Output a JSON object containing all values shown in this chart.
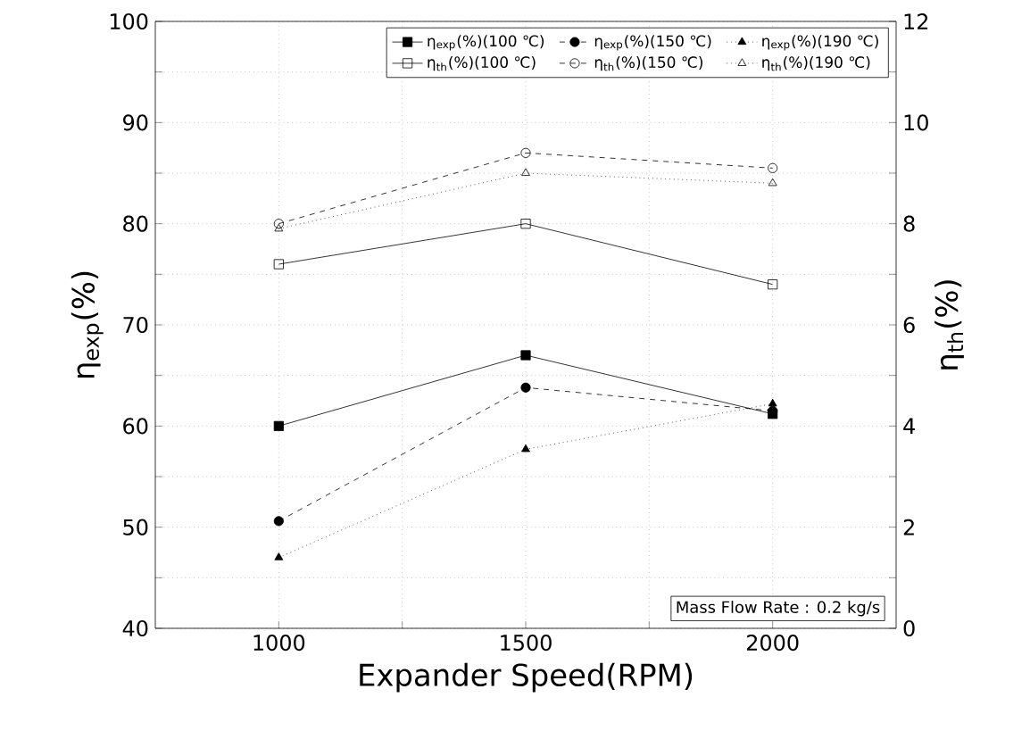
{
  "chart_data": {
    "type": "line",
    "xlabel": "Expander Speed(RPM)",
    "ylabel": "η$_{exp}$(%)",
    "y2label": "η$_{th}$(%)",
    "x": [
      1000,
      1500,
      2000
    ],
    "xlim": [
      750,
      2250
    ],
    "xticks": [
      1000,
      {
        "value": 1250,
        "label": null
      },
      1500,
      {
        "value": 1750,
        "label": null
      },
      2000
    ],
    "ylim": [
      40,
      100
    ],
    "yticks": [
      40,
      {
        "value": 45,
        "label": null
      },
      50,
      {
        "value": 55,
        "label": null
      },
      60,
      {
        "value": 65,
        "label": null
      },
      70,
      {
        "value": 75,
        "label": null
      },
      80,
      {
        "value": 85,
        "label": null
      },
      90,
      {
        "value": 95,
        "label": null
      },
      100
    ],
    "y2lim": [
      0,
      12
    ],
    "y2ticks": [
      0,
      {
        "value": 1,
        "label": null
      },
      2,
      {
        "value": 3,
        "label": null
      },
      4,
      {
        "value": 5,
        "label": null
      },
      6,
      {
        "value": 7,
        "label": null
      },
      8,
      {
        "value": 9,
        "label": null
      },
      10,
      {
        "value": 11,
        "label": null
      },
      12
    ],
    "grid": true,
    "legend": "top right",
    "annotations": [
      "Mass Flow Rate : 0.2 kg/s"
    ],
    "series": [
      {
        "name": "η$_{exp}$(%)(100 ℃)",
        "color": "#000000",
        "marker": "square",
        "line_style": "solid",
        "values": [
          60,
          67,
          61.2
        ]
      },
      {
        "name": "η$_{exp}$(%)(150 ℃)",
        "color": "#000000",
        "marker": "circle",
        "line_style": "dashed",
        "values": [
          50.6,
          63.8,
          61.5
        ]
      },
      {
        "name": "η$_{exp}$(%)(190 ℃)",
        "color": "#000000",
        "marker": "triangle",
        "line_style": "dotted",
        "values": [
          47,
          57.7,
          62.2
        ]
      },
      {
        "name": "η$_{th}$(%)(100 ℃)",
        "color": "#000000",
        "marker": "square",
        "line_style": "solid",
        "axis": "y2",
        "values": [
          7.2,
          8.0,
          6.8
        ]
      },
      {
        "name": "η$_{th}$(%)(150 ℃)",
        "color": "#000000",
        "marker": "circle",
        "line_style": "dashed",
        "axis": "y2",
        "values": [
          8.0,
          9.4,
          9.1
        ]
      },
      {
        "name": "η$_{th}$(%)(190 ℃)",
        "color": "#000000",
        "marker": "triangle",
        "line_style": "dotted",
        "axis": "y2",
        "values": [
          7.9,
          9.0,
          8.8
        ]
      }
    ]
  }
}
